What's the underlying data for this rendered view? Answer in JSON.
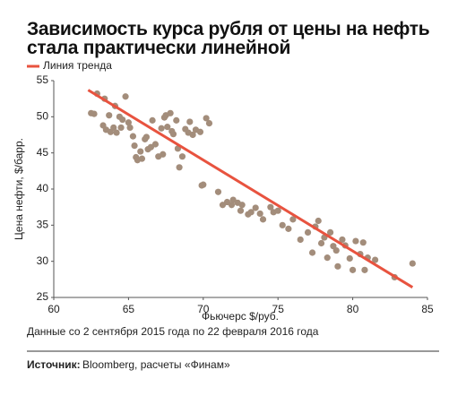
{
  "chart_data": {
    "type": "scatter",
    "title": "Зависимость курса рубля от цены на нефть стала практически линейной",
    "xlabel": "Фьючерс $/руб.",
    "ylabel": "Цена нефти, $/барр.",
    "xlim": [
      60,
      85
    ],
    "xticks": [
      60,
      65,
      70,
      75,
      80,
      85
    ],
    "ylim": [
      25,
      55
    ],
    "yticks": [
      25,
      30,
      35,
      40,
      45,
      50,
      55
    ],
    "grid": false,
    "series": [
      {
        "type": "scatter",
        "color": "#a38d7b",
        "x": [
          62.5,
          62.7,
          62.9,
          63.3,
          63.4,
          63.5,
          63.7,
          63.8,
          64.0,
          64.1,
          64.2,
          64.4,
          64.5,
          64.6,
          64.8,
          65.0,
          65.1,
          65.3,
          65.4,
          65.5,
          65.6,
          65.8,
          65.9,
          66.1,
          66.2,
          66.3,
          66.5,
          66.6,
          66.8,
          67.0,
          67.2,
          67.3,
          67.4,
          67.5,
          67.6,
          67.8,
          67.9,
          68.0,
          68.2,
          68.3,
          68.4,
          68.6,
          68.8,
          69.0,
          69.1,
          69.3,
          69.5,
          69.8,
          69.9,
          70.0,
          70.2,
          70.4,
          71.0,
          71.3,
          71.6,
          71.9,
          72.0,
          72.3,
          72.5,
          72.6,
          73.0,
          73.2,
          73.5,
          73.8,
          74.0,
          74.5,
          74.7,
          75.0,
          75.3,
          75.7,
          76.0,
          76.5,
          77.0,
          77.3,
          77.5,
          77.7,
          77.9,
          78.1,
          78.3,
          78.5,
          78.7,
          78.9,
          79.0,
          79.3,
          79.5,
          79.8,
          80.0,
          80.2,
          80.5,
          80.7,
          80.8,
          81.0,
          81.5,
          82.8,
          84.0
        ],
        "values": [
          50.5,
          50.4,
          53.2,
          48.8,
          52.5,
          48.2,
          50.2,
          47.9,
          48.5,
          51.5,
          47.8,
          50.0,
          48.5,
          49.6,
          52.8,
          49.2,
          48.5,
          47.3,
          46.0,
          44.4,
          44.0,
          45.2,
          44.2,
          46.9,
          47.2,
          45.5,
          45.8,
          49.5,
          46.2,
          44.5,
          48.4,
          44.8,
          49.9,
          50.2,
          48.6,
          50.5,
          48.0,
          47.6,
          49.5,
          45.6,
          43.0,
          44.5,
          48.3,
          47.8,
          49.3,
          47.5,
          48.2,
          47.9,
          40.5,
          40.6,
          49.8,
          49.1,
          39.6,
          37.8,
          38.2,
          37.8,
          38.5,
          38.1,
          37.0,
          37.8,
          36.5,
          36.8,
          37.4,
          36.6,
          35.8,
          37.5,
          36.8,
          37.0,
          35.0,
          34.5,
          35.8,
          33.0,
          34.0,
          31.2,
          34.8,
          35.6,
          32.5,
          33.3,
          30.5,
          34.0,
          32.1,
          31.5,
          29.3,
          33.0,
          32.2,
          30.4,
          28.8,
          32.8,
          31.0,
          32.6,
          28.8,
          30.5,
          30.2,
          27.8,
          29.7
        ]
      },
      {
        "type": "line",
        "name": "Линия тренда",
        "color": "#e8533f",
        "x": [
          62.3,
          84.0
        ],
        "values": [
          53.7,
          26.4
        ]
      }
    ]
  },
  "note": "Данные со 2 сентября 2015 года по 22 февраля 2016 года",
  "source": {
    "label": "Источник:",
    "text": "Bloomberg, расчеты «Финам»"
  }
}
